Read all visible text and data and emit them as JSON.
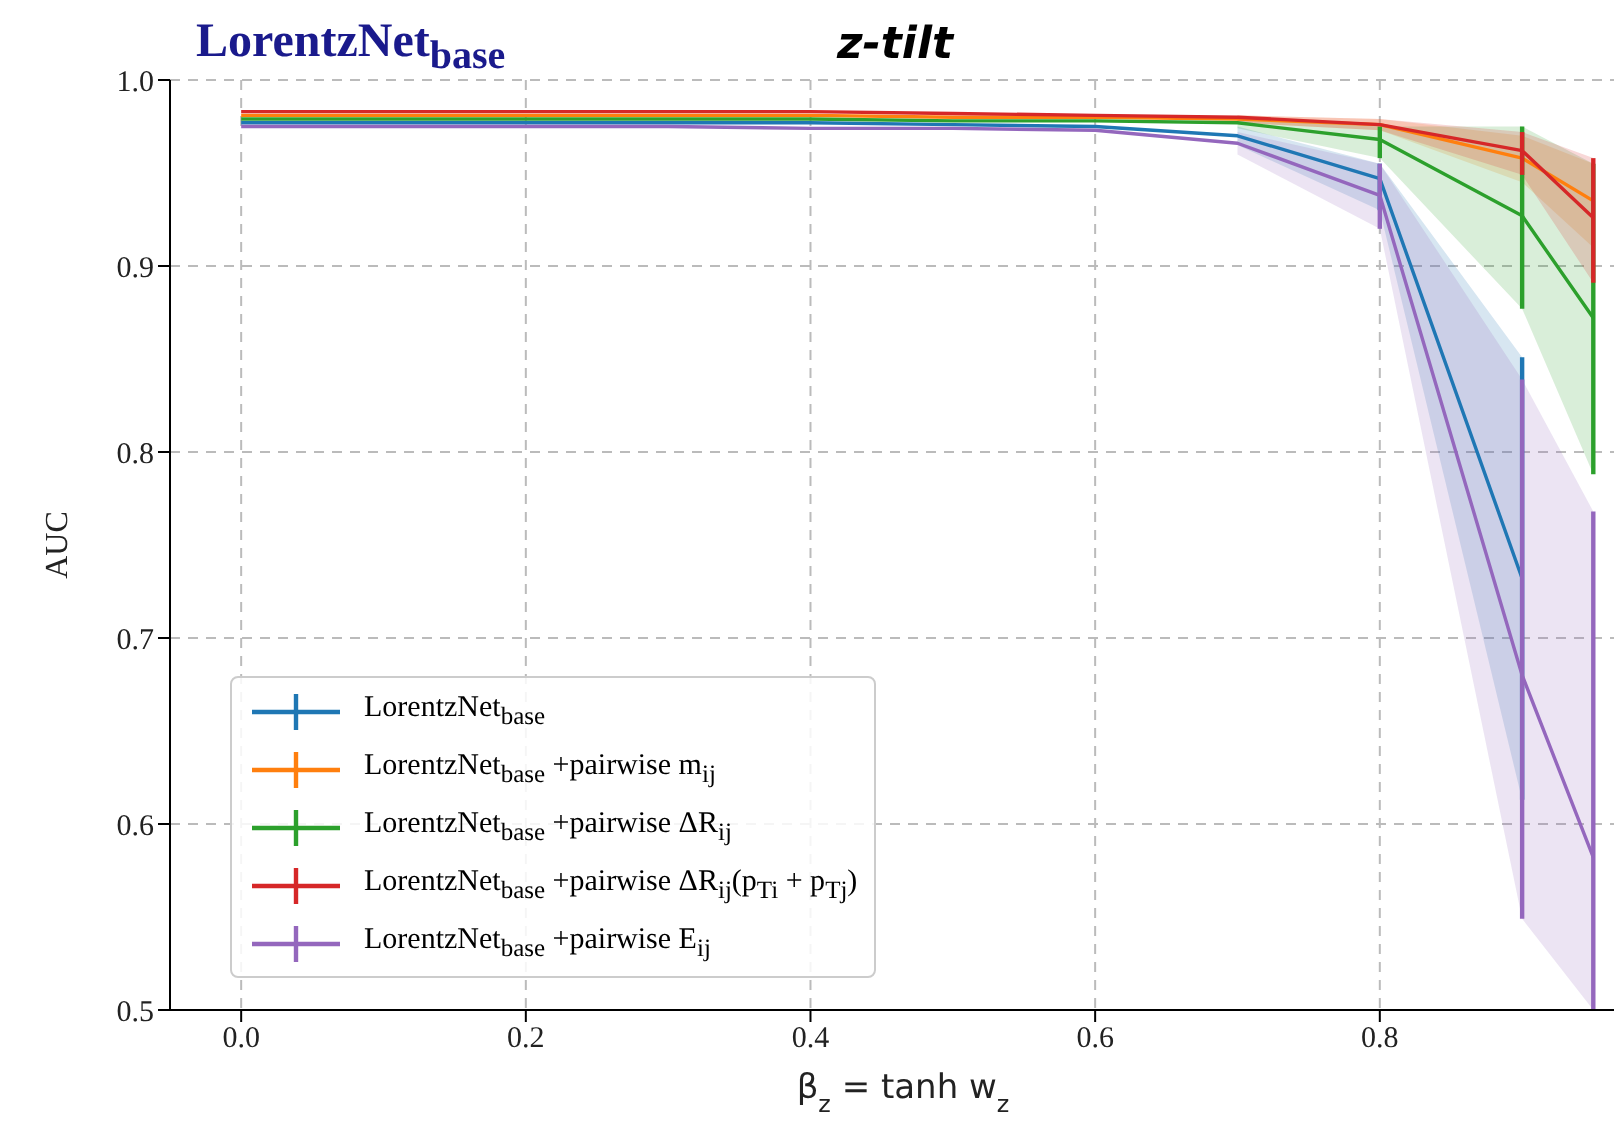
{
  "chart_data": {
    "type": "line",
    "title": "z-tilt",
    "subtitle": "LorentzNet$_{base}$",
    "xlabel": "β$_{z}$ = tanh w$_{z}$",
    "ylabel": "AUC",
    "x": [
      0,
      0.1,
      0.2,
      0.3,
      0.4,
      0.5,
      0.6,
      0.7,
      0.8,
      0.9,
      0.95
    ],
    "xlim": [
      -0.05,
      0.98
    ],
    "xticks": [
      {
        "value": 0,
        "label": "0.0"
      },
      {
        "value": 0.2,
        "label": "0.2"
      },
      {
        "value": 0.4,
        "label": "0.4"
      },
      {
        "value": 0.6,
        "label": "0.6"
      },
      {
        "value": 0.8,
        "label": "0.8"
      }
    ],
    "ylim": [
      0.5,
      1.0
    ],
    "yticks": [
      {
        "value": 0.5,
        "label": "0.5"
      },
      {
        "value": 0.6,
        "label": "0.6"
      },
      {
        "value": 0.7,
        "label": "0.7"
      },
      {
        "value": 0.8,
        "label": "0.8"
      },
      {
        "value": 0.9,
        "label": "0.9"
      },
      {
        "value": 1.0,
        "label": "1.0"
      }
    ],
    "grid": true,
    "legend": "bottom left",
    "marker": "none",
    "line_style": "solid",
    "series": [
      {
        "name": "LorentzNet$_{base}$",
        "color": "#1f77b4",
        "values": [
          0.977,
          0.977,
          0.977,
          0.977,
          0.977,
          0.976,
          0.975,
          0.97,
          0.947,
          0.732,
          null
        ],
        "errors": [
          null,
          null,
          null,
          null,
          null,
          null,
          null,
          null,
          [
            0.93,
            0.955
          ],
          [
            0.613,
            0.851
          ],
          null
        ],
        "lower": [
          null,
          null,
          null,
          null,
          null,
          null,
          null,
          0.965,
          0.93,
          0.613,
          null
        ],
        "upper": [
          null,
          null,
          null,
          null,
          null,
          null,
          null,
          0.975,
          0.955,
          0.851,
          null
        ]
      },
      {
        "name": "LorentzNet$_{base}$ +pairwise m$_{ij}$",
        "color": "#ff7f0e",
        "values": [
          0.981,
          0.981,
          0.981,
          0.981,
          0.981,
          0.98,
          0.98,
          0.979,
          0.976,
          0.958,
          0.935
        ],
        "lower": [
          null,
          null,
          null,
          null,
          null,
          null,
          null,
          0.977,
          0.973,
          0.945,
          0.91
        ],
        "upper": [
          null,
          null,
          null,
          null,
          null,
          null,
          null,
          0.981,
          0.979,
          0.97,
          0.955
        ]
      },
      {
        "name": "LorentzNet$_{base}$ +pairwise ΔR$_{ij}$",
        "color": "#2ca02c",
        "values": [
          0.979,
          0.979,
          0.979,
          0.979,
          0.979,
          0.978,
          0.978,
          0.977,
          0.968,
          0.927,
          0.872
        ],
        "errors": [
          null,
          null,
          null,
          null,
          null,
          null,
          null,
          null,
          [
            0.958,
            0.975
          ],
          [
            0.877,
            0.975
          ],
          [
            0.788,
            0.955
          ]
        ],
        "lower": [
          null,
          null,
          null,
          null,
          null,
          null,
          null,
          0.974,
          0.958,
          0.877,
          0.788
        ],
        "upper": [
          null,
          null,
          null,
          null,
          null,
          null,
          null,
          0.98,
          0.975,
          0.975,
          0.955
        ]
      },
      {
        "name": "LorentzNet$_{base}$ +pairwise ΔR$_{ij}$(p$_{Ti}$ + p$_{Tj}$)",
        "color": "#d62728",
        "values": [
          0.983,
          0.983,
          0.983,
          0.983,
          0.983,
          0.982,
          0.981,
          0.98,
          0.976,
          0.962,
          0.926
        ],
        "errors": [
          null,
          null,
          null,
          null,
          null,
          null,
          null,
          null,
          null,
          [
            0.949,
            0.972
          ],
          [
            0.891,
            0.958
          ]
        ],
        "lower": [
          null,
          null,
          null,
          null,
          null,
          null,
          null,
          0.977,
          0.973,
          0.949,
          0.891
        ],
        "upper": [
          null,
          null,
          null,
          null,
          null,
          null,
          null,
          0.981,
          0.979,
          0.972,
          0.958
        ]
      },
      {
        "name": "LorentzNet$_{base}$ +pairwise E$_{ij}$",
        "color": "#9467bd",
        "values": [
          0.975,
          0.975,
          0.975,
          0.975,
          0.974,
          0.974,
          0.973,
          0.966,
          0.938,
          0.68,
          0.582
        ],
        "errors": [
          null,
          null,
          null,
          null,
          null,
          null,
          null,
          null,
          [
            0.92,
            0.955
          ],
          [
            0.549,
            0.839
          ],
          [
            0.5,
            0.768
          ]
        ],
        "lower": [
          null,
          null,
          null,
          null,
          null,
          null,
          null,
          0.96,
          0.92,
          0.549,
          0.5
        ],
        "upper": [
          null,
          null,
          null,
          null,
          null,
          null,
          null,
          0.972,
          0.955,
          0.839,
          0.768
        ]
      }
    ]
  }
}
